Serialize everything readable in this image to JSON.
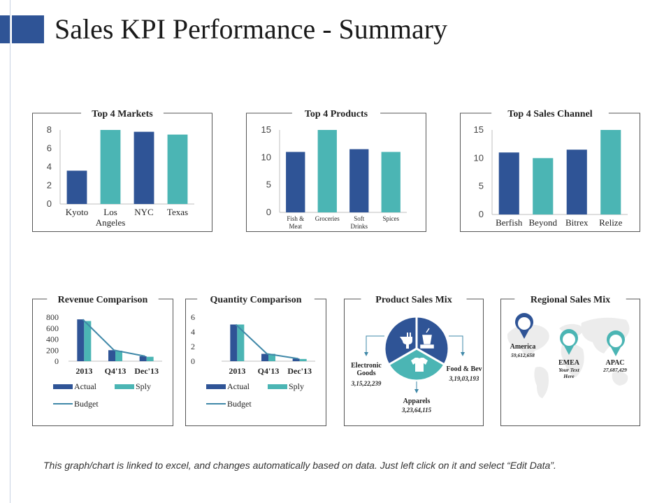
{
  "page": {
    "title": "Sales KPI Performance - Summary",
    "footer": "This graph/chart is linked to excel, and changes automatically based on data. Just left click on it and select “Edit Data”."
  },
  "colors": {
    "dark": "#2f5496",
    "teal": "#4bb5b4",
    "line": "#3f88a8",
    "frame": "#555555"
  },
  "chart_data": [
    {
      "type": "bar",
      "title": "Top 4 Markets",
      "categories": [
        "Kyoto",
        "Los Angeles",
        "NYC",
        "Texas"
      ],
      "values": [
        3.6,
        8,
        7.8,
        7.5
      ],
      "ylim": [
        0,
        8
      ],
      "yticks": [
        "0",
        "2",
        "4",
        "6",
        "8"
      ],
      "bar_colors": [
        "dark",
        "teal",
        "dark",
        "teal"
      ]
    },
    {
      "type": "bar",
      "title": "Top 4 Products",
      "categories": [
        "Fish & Meat",
        "Groceries",
        "Soft Drinks",
        "Spices"
      ],
      "values": [
        11,
        15,
        11.5,
        11
      ],
      "ylim": [
        0,
        15
      ],
      "yticks": [
        "0",
        "5",
        "10",
        "15"
      ],
      "bar_colors": [
        "dark",
        "teal",
        "dark",
        "teal"
      ]
    },
    {
      "type": "bar",
      "title": "Top 4 Sales Channel",
      "categories": [
        "Berfish",
        "Beyond",
        "Bitrex",
        "Relize"
      ],
      "values": [
        11,
        10,
        11.5,
        15
      ],
      "ylim": [
        0,
        15
      ],
      "yticks": [
        "0",
        "5",
        "10",
        "15"
      ],
      "bar_colors": [
        "dark",
        "teal",
        "dark",
        "teal"
      ]
    },
    {
      "type": "bar",
      "title": "Revenue Comparison",
      "categories": [
        "2013",
        "Q4'13",
        "Dec'13"
      ],
      "series": [
        {
          "name": "Actual",
          "values": [
            760,
            200,
            90
          ],
          "color": "dark"
        },
        {
          "name": "Sply",
          "values": [
            730,
            190,
            80
          ],
          "color": "teal"
        }
      ],
      "line": {
        "name": "Budget",
        "values": [
          760,
          200,
          90
        ]
      },
      "ylim": [
        0,
        800
      ],
      "yticks": [
        "0",
        "200",
        "400",
        "600",
        "800"
      ]
    },
    {
      "type": "bar",
      "title": "Quantity Comparison",
      "categories": [
        "2013",
        "Q4'13",
        "Dec'13"
      ],
      "series": [
        {
          "name": "Actual",
          "values": [
            5,
            1,
            0.35
          ],
          "color": "dark"
        },
        {
          "name": "Sply",
          "values": [
            5,
            1,
            0.3
          ],
          "color": "teal"
        }
      ],
      "line": {
        "name": "Budget",
        "values": [
          5,
          1,
          0.35
        ]
      },
      "ylim": [
        0,
        6
      ],
      "yticks": [
        "0",
        "2",
        "4",
        "6"
      ]
    },
    {
      "type": "pie",
      "title": "Product Sales Mix",
      "slices": [
        {
          "label": "Electronic Goods",
          "value": "3,15,22,239",
          "color": "dark",
          "icon": "plug-icon"
        },
        {
          "label": "Food & Bev",
          "value": "3,19,03,193",
          "color": "dark",
          "icon": "food-icon"
        },
        {
          "label": "Apparels",
          "value": "3,23,64,115",
          "color": "teal",
          "icon": "shirt-icon"
        }
      ]
    },
    {
      "type": "map",
      "title": "Regional Sales Mix",
      "regions": [
        {
          "name": "America",
          "value": "59,612,658",
          "color": "dark"
        },
        {
          "name": "EMEA",
          "value": "Your Text Here",
          "color": "teal"
        },
        {
          "name": "APAC",
          "value": "27,687,429",
          "color": "teal"
        }
      ]
    }
  ]
}
